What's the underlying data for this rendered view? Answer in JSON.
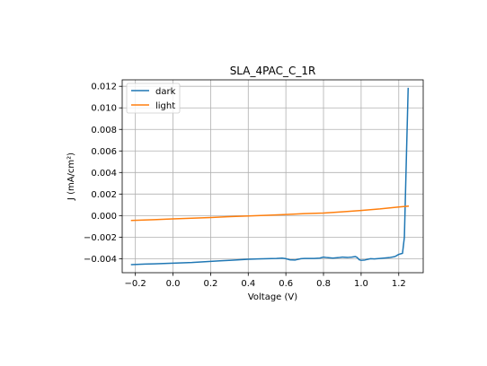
{
  "chart_data": {
    "type": "line",
    "title": "SLA_4PAC_C_1R",
    "xlabel": "Voltage (V)",
    "ylabel": "J (mA/cm²)",
    "xlim": [
      -0.27,
      1.33
    ],
    "ylim": [
      -0.0053,
      0.0126
    ],
    "xticks": [
      "−0.2",
      "0.0",
      "0.2",
      "0.4",
      "0.6",
      "0.8",
      "1.0",
      "1.2"
    ],
    "xtick_values": [
      -0.2,
      0.0,
      0.2,
      0.4,
      0.6,
      0.8,
      1.0,
      1.2
    ],
    "yticks": [
      "−0.004",
      "−0.002",
      "0.000",
      "0.002",
      "0.004",
      "0.006",
      "0.008",
      "0.010",
      "0.012"
    ],
    "ytick_values": [
      -0.004,
      -0.002,
      0.0,
      0.002,
      0.004,
      0.006,
      0.008,
      0.01,
      0.012
    ],
    "grid": true,
    "legend_position": "upper-left",
    "series": [
      {
        "name": "dark",
        "color": "#1f77b4",
        "x": [
          -0.22,
          -0.15,
          -0.1,
          -0.05,
          0.0,
          0.05,
          0.1,
          0.15,
          0.2,
          0.25,
          0.3,
          0.35,
          0.4,
          0.45,
          0.5,
          0.55,
          0.58,
          0.6,
          0.62,
          0.65,
          0.68,
          0.7,
          0.75,
          0.78,
          0.8,
          0.82,
          0.85,
          0.88,
          0.9,
          0.93,
          0.95,
          0.97,
          0.98,
          0.99,
          1.0,
          1.02,
          1.05,
          1.07,
          1.1,
          1.12,
          1.15,
          1.18,
          1.2,
          1.22,
          1.23,
          1.24,
          1.25
        ],
        "y": [
          -0.00455,
          -0.0045,
          -0.00448,
          -0.00445,
          -0.00442,
          -0.00438,
          -0.00435,
          -0.0043,
          -0.00425,
          -0.0042,
          -0.00415,
          -0.0041,
          -0.00405,
          -0.00402,
          -0.004,
          -0.00398,
          -0.00395,
          -0.004,
          -0.0041,
          -0.00412,
          -0.004,
          -0.00398,
          -0.00398,
          -0.00395,
          -0.00385,
          -0.0039,
          -0.00395,
          -0.0039,
          -0.00385,
          -0.00388,
          -0.00385,
          -0.0038,
          -0.0039,
          -0.0041,
          -0.00415,
          -0.00412,
          -0.004,
          -0.00402,
          -0.00398,
          -0.00395,
          -0.0039,
          -0.0038,
          -0.0036,
          -0.0035,
          -0.002,
          0.005,
          0.0118
        ]
      },
      {
        "name": "light",
        "color": "#ff7f0e",
        "x": [
          -0.22,
          -0.1,
          0.0,
          0.1,
          0.2,
          0.3,
          0.4,
          0.5,
          0.6,
          0.7,
          0.8,
          0.9,
          1.0,
          1.1,
          1.2,
          1.25
        ],
        "y": [
          -0.00045,
          -0.00038,
          -0.0003,
          -0.00024,
          -0.00018,
          -0.0001,
          -3e-05,
          3e-05,
          0.0001,
          0.00018,
          0.00024,
          0.00035,
          0.00048,
          0.00062,
          0.0008,
          0.00088
        ]
      }
    ]
  }
}
